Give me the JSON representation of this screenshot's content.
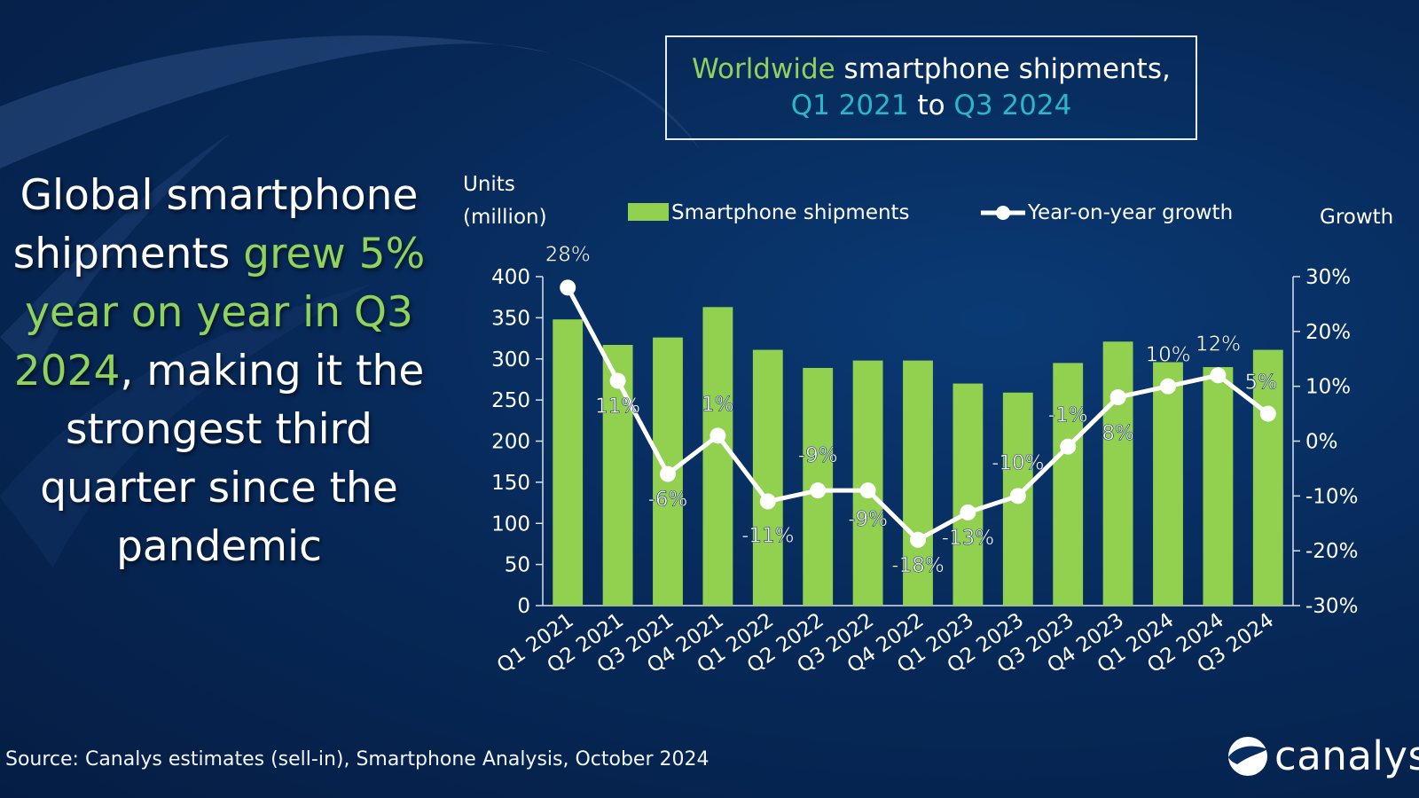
{
  "header": {
    "title_part1": "Worldwide",
    "title_part2": " smartphone shipments,",
    "title_part3": "Q1 2021",
    "title_part4": " to ",
    "title_part5": "Q3 2024"
  },
  "headline": {
    "part1": "Global smartphone shipments ",
    "part2": "grew 5% year on year in Q3 2024",
    "part3": ", making it the strongest third quarter since the pandemic"
  },
  "footer": {
    "source": "Source: Canalys estimates (sell-in), Smartphone Analysis, October 2024",
    "logo_text": "canalys"
  },
  "colors": {
    "bar": "#92d050",
    "line": "#ffffff",
    "highlight_green": "#8fd25c",
    "highlight_teal": "#29b7c7"
  },
  "chart_data": {
    "type": "bar",
    "categories": [
      "Q1 2021",
      "Q2 2021",
      "Q3 2021",
      "Q4 2021",
      "Q1 2022",
      "Q2 2022",
      "Q3 2022",
      "Q4 2022",
      "Q1 2023",
      "Q2 2023",
      "Q3 2023",
      "Q4 2023",
      "Q1 2024",
      "Q2 2024",
      "Q3 2024"
    ],
    "series": [
      {
        "name": "Smartphone shipments",
        "kind": "bar",
        "axis": "left",
        "values": [
          348,
          317,
          326,
          363,
          311,
          289,
          298,
          298,
          270,
          259,
          295,
          321,
          296,
          290,
          311
        ]
      },
      {
        "name": "Year-on-year growth",
        "kind": "line",
        "axis": "right",
        "values": [
          28,
          11,
          -6,
          1,
          -11,
          -9,
          -9,
          -18,
          -13,
          -10,
          -1,
          8,
          10,
          12,
          5
        ]
      }
    ],
    "growth_labels": [
      "28%",
      "11%",
      "-6%",
      "1%",
      "-11%",
      "-9%",
      "-9%",
      "-18%",
      "-13%",
      "-10%",
      "-1%",
      "8%",
      "10%",
      "12%",
      "5%"
    ],
    "ylabel_left_line1": "Units",
    "ylabel_left_line2": "(million)",
    "ylabel_right": "Growth",
    "ylim_left": [
      0,
      400
    ],
    "yticks_left": [
      "0",
      "50",
      "100",
      "150",
      "200",
      "250",
      "300",
      "350",
      "400"
    ],
    "ylim_right": [
      -30,
      30
    ],
    "yticks_right": [
      "-30%",
      "-20%",
      "-10%",
      "0%",
      "10%",
      "20%",
      "30%"
    ],
    "legend_position": "top",
    "grid": false
  }
}
